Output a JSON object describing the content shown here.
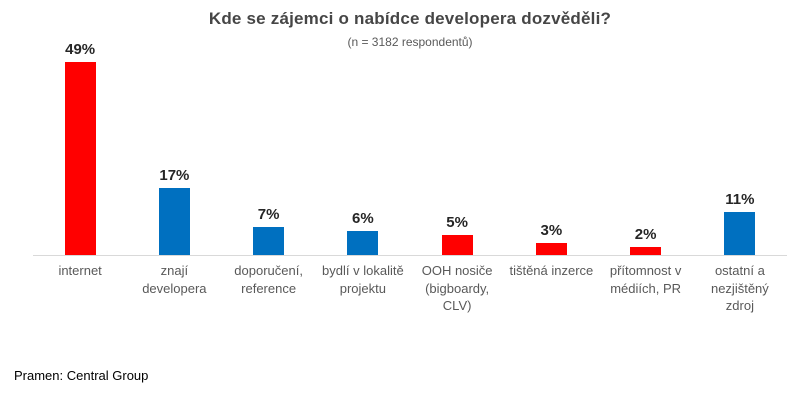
{
  "chart_data": {
    "type": "bar",
    "title": "Kde se zájemci o nabídce developera dozvěděli?",
    "subtitle": "(n = 3182 respondentů)",
    "categories": [
      "internet",
      "znají developera",
      "doporučení, reference",
      "bydlí v lokalitě projektu",
      "OOH nosiče (bigboardy, CLV)",
      "tištěná inzerce",
      "přítomnost v médiích, PR",
      "ostatní a nezjištěný zdroj"
    ],
    "category_display": [
      "internet",
      "znají\ndevelopera",
      "doporučení,\nreference",
      "bydlí v lokalitě\nprojektu",
      "OOH nosiče\n(bigboardy,\nCLV)",
      "tištěná inzerce",
      "přítomnost v\nmédiích, PR",
      "ostatní a\nnezjištěný\nzdroj"
    ],
    "values": [
      49,
      17,
      7,
      6,
      5,
      3,
      2,
      11
    ],
    "value_labels": [
      "49%",
      "17%",
      "7%",
      "6%",
      "5%",
      "3%",
      "2%",
      "11%"
    ],
    "bar_colors": [
      "#ff0000",
      "#0070c0",
      "#0070c0",
      "#0070c0",
      "#ff0000",
      "#ff0000",
      "#ff0000",
      "#0070c0"
    ],
    "xlabel": "",
    "ylabel": "",
    "ylim": [
      0,
      50
    ],
    "grid": false,
    "legend": null,
    "axis_line_color": "#d9d9d9"
  },
  "colors": {
    "red": "#ff0000",
    "blue": "#0070c0",
    "title_text": "#464646",
    "subtitle_text": "#595959",
    "category_text": "#595959",
    "value_text": "#262626",
    "axis_line": "#d9d9d9"
  },
  "source": {
    "label": "Pramen: Central Group"
  }
}
